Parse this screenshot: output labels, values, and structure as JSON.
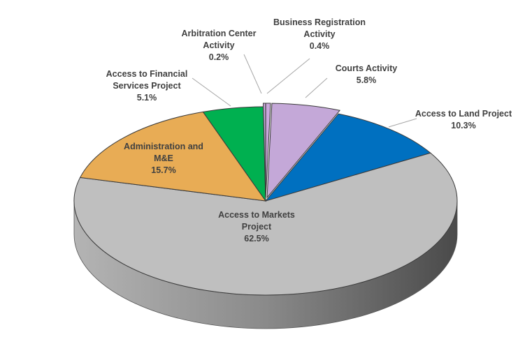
{
  "chart_data": {
    "type": "pie",
    "style": "3d",
    "title": "",
    "slices": [
      {
        "name": "Business Registration Activity",
        "value": 0.4,
        "label_lines": [
          "Business Registration",
          "Activity",
          "0.4%"
        ],
        "color": "#c9a8dc",
        "exploded": true
      },
      {
        "name": "Courts Activity",
        "value": 5.8,
        "label_lines": [
          "Courts Activity",
          "5.8%"
        ],
        "color": "#c4a8d8",
        "exploded": true
      },
      {
        "name": "Access to Land Project",
        "value": 10.3,
        "label_lines": [
          "Access to Land Project",
          "10.3%"
        ],
        "color": "#0070c0",
        "exploded": false
      },
      {
        "name": "Access to Markets Project",
        "value": 62.5,
        "label_lines": [
          "Access to Markets",
          "Project",
          "62.5%"
        ],
        "color": "#bfbfbf",
        "exploded": false
      },
      {
        "name": "Administration and M&E",
        "value": 15.7,
        "label_lines": [
          "Administration and",
          "M&E",
          "15.7%"
        ],
        "color": "#e8ac55",
        "exploded": false
      },
      {
        "name": "Access to Financial Services Project",
        "value": 5.1,
        "label_lines": [
          "Access to Financial",
          "Services Project",
          "5.1%"
        ],
        "color": "#00b050",
        "exploded": false
      },
      {
        "name": "Arbitration Center Activity",
        "value": 0.2,
        "label_lines": [
          "Arbitration Center",
          "Activity",
          "0.2%"
        ],
        "color": "#c9a8dc",
        "exploded": true
      }
    ],
    "legend": "none",
    "data_labels": "category name and percentage"
  }
}
